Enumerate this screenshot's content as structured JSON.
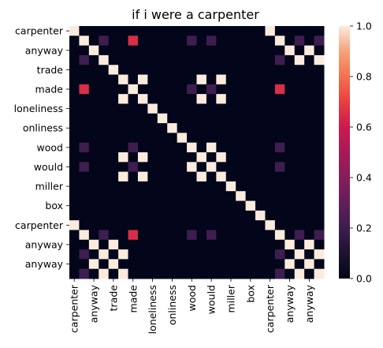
{
  "chart_data": {
    "type": "heatmap",
    "title": "if i were a carpenter",
    "rows": [
      "carpenter",
      "",
      "anyway",
      "",
      "trade",
      "",
      "made",
      "",
      "loneliness",
      "",
      "onliness",
      "",
      "wood",
      "",
      "would",
      "",
      "miller",
      "",
      "box",
      "",
      "carpenter",
      "",
      "anyway",
      "",
      "anyway",
      ""
    ],
    "columns": [
      "carpenter",
      "",
      "anyway",
      "",
      "trade",
      "",
      "made",
      "",
      "loneliness",
      "",
      "onliness",
      "",
      "wood",
      "",
      "would",
      "",
      "miller",
      "",
      "box",
      "",
      "carpenter",
      "",
      "anyway",
      "",
      "anyway",
      ""
    ],
    "matrix": [
      [
        1,
        0,
        0,
        0,
        0,
        0,
        0,
        0,
        0,
        0,
        0,
        0,
        0,
        0,
        0,
        0,
        0,
        0,
        0,
        0,
        1,
        0,
        0,
        0,
        0,
        0
      ],
      [
        0,
        1,
        0,
        0.2,
        0,
        0,
        0.65,
        0,
        0,
        0,
        0,
        0,
        0.2,
        0,
        0.2,
        0,
        0,
        0,
        0,
        0,
        0,
        1,
        0,
        0.2,
        0,
        0.2
      ],
      [
        0,
        0,
        1,
        0,
        0,
        0,
        0,
        0,
        0,
        0,
        0,
        0,
        0,
        0,
        0,
        0,
        0,
        0,
        0,
        0,
        0,
        0,
        1,
        0,
        1,
        0
      ],
      [
        0,
        0.2,
        0,
        1,
        0,
        0,
        0,
        0,
        0,
        0,
        0,
        0,
        0,
        0,
        0,
        0,
        0,
        0,
        0,
        0,
        0,
        0.2,
        0,
        1,
        0,
        1
      ],
      [
        0,
        0,
        0,
        0,
        1,
        0,
        0,
        0,
        0,
        0,
        0,
        0,
        0,
        0,
        0,
        0,
        0,
        0,
        0,
        0,
        0,
        0,
        0,
        0,
        0,
        0
      ],
      [
        0,
        0,
        0,
        0,
        0,
        1,
        0,
        1,
        0,
        0,
        0,
        0,
        0,
        1,
        0,
        1,
        0,
        0,
        0,
        0,
        0,
        0,
        0,
        0,
        0,
        0
      ],
      [
        0,
        0.65,
        0,
        0,
        0,
        0,
        1,
        0,
        0,
        0,
        0,
        0,
        0.2,
        0,
        0.2,
        0,
        0,
        0,
        0,
        0,
        0,
        0.65,
        0,
        0,
        0,
        0
      ],
      [
        0,
        0,
        0,
        0,
        0,
        1,
        0,
        1,
        0,
        0,
        0,
        0,
        0,
        1,
        0,
        1,
        0,
        0,
        0,
        0,
        0,
        0,
        0,
        0,
        0,
        0
      ],
      [
        0,
        0,
        0,
        0,
        0,
        0,
        0,
        0,
        1,
        0,
        0,
        0,
        0,
        0,
        0,
        0,
        0,
        0,
        0,
        0,
        0,
        0,
        0,
        0,
        0,
        0
      ],
      [
        0,
        0,
        0,
        0,
        0,
        0,
        0,
        0,
        0,
        1,
        0,
        0,
        0,
        0,
        0,
        0,
        0,
        0,
        0,
        0,
        0,
        0,
        0,
        0,
        0,
        0
      ],
      [
        0,
        0,
        0,
        0,
        0,
        0,
        0,
        0,
        0,
        0,
        1,
        0,
        0,
        0,
        0,
        0,
        0,
        0,
        0,
        0,
        0,
        0,
        0,
        0,
        0,
        0
      ],
      [
        0,
        0,
        0,
        0,
        0,
        0,
        0,
        0,
        0,
        0,
        0,
        1,
        0,
        0,
        0,
        0,
        0,
        0,
        0,
        0,
        0,
        0,
        0,
        0,
        0,
        0
      ],
      [
        0,
        0.2,
        0,
        0,
        0,
        0,
        0.2,
        0,
        0,
        0,
        0,
        0,
        1,
        0,
        1,
        0,
        0,
        0,
        0,
        0,
        0,
        0.2,
        0,
        0,
        0,
        0
      ],
      [
        0,
        0,
        0,
        0,
        0,
        1,
        0,
        1,
        0,
        0,
        0,
        0,
        0,
        1,
        0,
        1,
        0,
        0,
        0,
        0,
        0,
        0,
        0,
        0,
        0,
        0
      ],
      [
        0,
        0.2,
        0,
        0,
        0,
        0,
        0.2,
        0,
        0,
        0,
        0,
        0,
        1,
        0,
        1,
        0,
        0,
        0,
        0,
        0,
        0,
        0.2,
        0,
        0,
        0,
        0
      ],
      [
        0,
        0,
        0,
        0,
        0,
        1,
        0,
        1,
        0,
        0,
        0,
        0,
        0,
        1,
        0,
        1,
        0,
        0,
        0,
        0,
        0,
        0,
        0,
        0,
        0,
        0
      ],
      [
        0,
        0,
        0,
        0,
        0,
        0,
        0,
        0,
        0,
        0,
        0,
        0,
        0,
        0,
        0,
        0,
        1,
        0,
        0,
        0,
        0,
        0,
        0,
        0,
        0,
        0
      ],
      [
        0,
        0,
        0,
        0,
        0,
        0,
        0,
        0,
        0,
        0,
        0,
        0,
        0,
        0,
        0,
        0,
        0,
        1,
        0,
        0,
        0,
        0,
        0,
        0,
        0,
        0
      ],
      [
        0,
        0,
        0,
        0,
        0,
        0,
        0,
        0,
        0,
        0,
        0,
        0,
        0,
        0,
        0,
        0,
        0,
        0,
        1,
        0,
        0,
        0,
        0,
        0,
        0,
        0
      ],
      [
        0,
        0,
        0,
        0,
        0,
        0,
        0,
        0,
        0,
        0,
        0,
        0,
        0,
        0,
        0,
        0,
        0,
        0,
        0,
        1,
        0,
        0,
        0,
        0,
        0,
        0
      ],
      [
        1,
        0,
        0,
        0,
        0,
        0,
        0,
        0,
        0,
        0,
        0,
        0,
        0,
        0,
        0,
        0,
        0,
        0,
        0,
        0,
        1,
        0,
        0,
        0,
        0,
        0
      ],
      [
        0,
        1,
        0,
        0.2,
        0,
        0,
        0.65,
        0,
        0,
        0,
        0,
        0,
        0.2,
        0,
        0.2,
        0,
        0,
        0,
        0,
        0,
        0,
        1,
        0,
        0.2,
        0,
        0.2
      ],
      [
        0,
        0,
        1,
        0,
        1,
        0,
        0,
        0,
        0,
        0,
        0,
        0,
        0,
        0,
        0,
        0,
        0,
        0,
        0,
        0,
        0,
        0,
        1,
        0,
        1,
        0
      ],
      [
        0,
        0.2,
        0,
        1,
        0,
        1,
        0,
        0,
        0,
        0,
        0,
        0,
        0,
        0,
        0,
        0,
        0,
        0,
        0,
        0,
        0,
        0.2,
        0,
        1,
        0,
        1
      ],
      [
        0,
        0,
        1,
        0,
        1,
        0,
        0,
        0,
        0,
        0,
        0,
        0,
        0,
        0,
        0,
        0,
        0,
        0,
        0,
        0,
        0,
        0,
        1,
        0,
        1,
        0
      ],
      [
        0,
        0.2,
        0,
        1,
        0,
        1,
        0,
        0,
        0,
        0,
        0,
        0,
        0,
        0,
        0,
        0,
        0,
        0,
        0,
        0,
        0,
        0.2,
        0,
        1,
        0,
        1
      ]
    ],
    "colorbar": {
      "min": 0,
      "max": 1,
      "ticks": [
        "0.0",
        "0.2",
        "0.4",
        "0.6",
        "0.8",
        "1.0"
      ],
      "colormap": "rocket"
    }
  }
}
